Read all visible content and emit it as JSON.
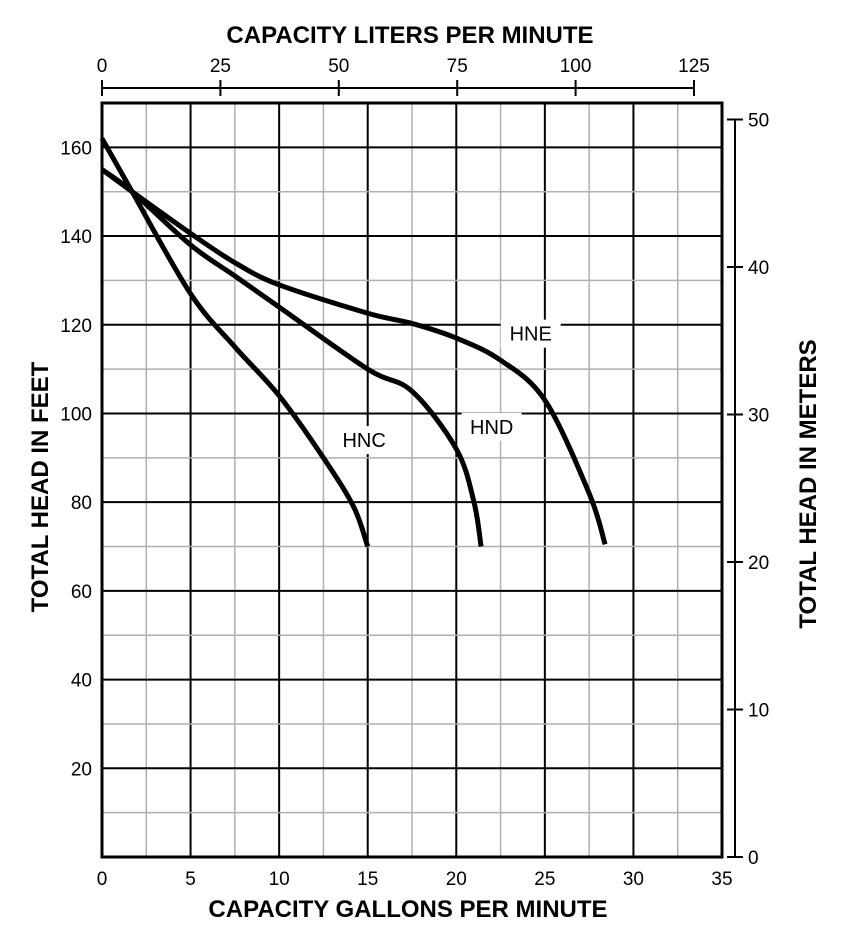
{
  "chart_data": {
    "type": "line",
    "title": "",
    "xlabel": "CAPACITY GALLONS PER MINUTE",
    "ylabel": "TOTAL HEAD IN FEET",
    "x2label": "CAPACITY LITERS PER MINUTE",
    "y2label": "TOTAL HEAD IN METERS",
    "xlim": [
      0,
      35
    ],
    "ylim": [
      0,
      170
    ],
    "x2lim": [
      0,
      125
    ],
    "y2lim": [
      0,
      50
    ],
    "xticks": [
      "0",
      "5",
      "10",
      "15",
      "20",
      "25",
      "30",
      "35"
    ],
    "yticks": [
      "20",
      "40",
      "60",
      "80",
      "100",
      "120",
      "140",
      "160"
    ],
    "x2ticks": [
      "0",
      "25",
      "50",
      "75",
      "100",
      "125"
    ],
    "y2ticks": [
      "0",
      "10",
      "20",
      "30",
      "40",
      "50"
    ],
    "grid": true,
    "line_color": "#000000",
    "series": [
      {
        "name": "HNC",
        "label_at": [
          14.8,
          94
        ],
        "x": [
          0,
          1.7,
          5,
          7.5,
          10,
          12.5,
          14.2,
          15.0
        ],
        "y": [
          162,
          150,
          127,
          115,
          104,
          90,
          79,
          70
        ]
      },
      {
        "name": "HND",
        "label_at": [
          22.0,
          97
        ],
        "x": [
          0,
          1.7,
          5,
          7.5,
          10,
          15,
          17.5,
          20,
          21.0,
          21.4
        ],
        "y": [
          155,
          150,
          138,
          131,
          124,
          110,
          105,
          92,
          80,
          70
        ]
      },
      {
        "name": "HNE",
        "label_at": [
          24.2,
          118
        ],
        "x": [
          0,
          1.7,
          5,
          7.5,
          10,
          15,
          17.5,
          20,
          22.5,
          25,
          27.5,
          28.4
        ],
        "y": [
          155,
          150,
          140.6,
          134,
          129,
          122.6,
          120.3,
          117,
          112,
          103,
          82,
          70.5
        ]
      }
    ]
  }
}
